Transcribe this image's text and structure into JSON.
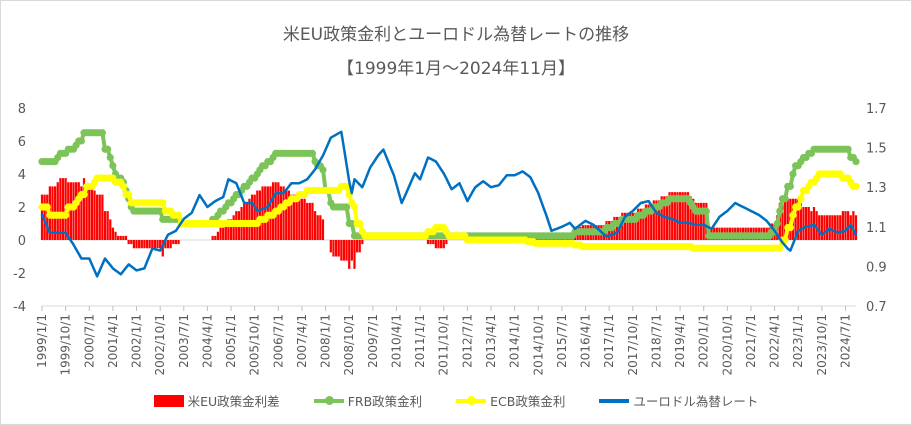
{
  "chart_data": {
    "type": "bar+line",
    "title": "米EU政策金利とユーロドル為替レートの推移",
    "subtitle": "【1999年1月～2024年11月】",
    "x_range": [
      "1999/1",
      "2024/11"
    ],
    "x_tick_labels": [
      "1999/1/1",
      "1999/10/1",
      "2000/7/1",
      "2001/4/1",
      "2002/1/1",
      "2002/10/1",
      "2003/7/1",
      "2004/4/1",
      "2005/1/1",
      "2005/10/1",
      "2006/7/1",
      "2007/4/1",
      "2008/1/1",
      "2008/10/1",
      "2009/7/1",
      "2010/4/1",
      "2011/1/1",
      "2011/10/1",
      "2012/7/1",
      "2013/4/1",
      "2014/1/1",
      "2014/10/1",
      "2015/7/1",
      "2016/4/1",
      "2017/1/1",
      "2017/10/1",
      "2018/7/1",
      "2019/4/1",
      "2020/1/1",
      "2020/10/1",
      "2021/7/1",
      "2022/4/1",
      "2023/1/1",
      "2023/10/1",
      "2024/7/1"
    ],
    "y_left": {
      "range": [
        -4,
        8
      ],
      "ticks": [
        "8",
        "6",
        "4",
        "2",
        "0",
        "-2",
        "-4"
      ]
    },
    "y_right": {
      "range": [
        0.7,
        1.7
      ],
      "ticks": [
        "1.7",
        "1.5",
        "1.3",
        "1.1",
        "0.9",
        "0.7"
      ]
    },
    "grid": false,
    "legend_position": "bottom",
    "series": [
      {
        "name": "米EU政策金利差",
        "kind": "bar",
        "axis": "left",
        "color": "#ff0000",
        "definition": "FRB政策金利 − ECB政策金利"
      },
      {
        "name": "FRB政策金利",
        "kind": "step-line-markers",
        "axis": "left",
        "color": "#7cc35a",
        "changes": [
          [
            "1999/1",
            4.75
          ],
          [
            "1999/7",
            5.0
          ],
          [
            "1999/8",
            5.25
          ],
          [
            "1999/11",
            5.5
          ],
          [
            "2000/2",
            5.75
          ],
          [
            "2000/3",
            6.0
          ],
          [
            "2000/5",
            6.5
          ],
          [
            "2001/1",
            5.5
          ],
          [
            "2001/3",
            5.0
          ],
          [
            "2001/4",
            4.5
          ],
          [
            "2001/5",
            4.0
          ],
          [
            "2001/6",
            3.75
          ],
          [
            "2001/8",
            3.5
          ],
          [
            "2001/9",
            3.0
          ],
          [
            "2001/10",
            2.5
          ],
          [
            "2001/11",
            2.0
          ],
          [
            "2001/12",
            1.75
          ],
          [
            "2002/11",
            1.25
          ],
          [
            "2003/6",
            1.0
          ],
          [
            "2004/6",
            1.25
          ],
          [
            "2004/8",
            1.5
          ],
          [
            "2004/9",
            1.75
          ],
          [
            "2004/11",
            2.0
          ],
          [
            "2004/12",
            2.25
          ],
          [
            "2005/2",
            2.5
          ],
          [
            "2005/3",
            2.75
          ],
          [
            "2005/5",
            3.0
          ],
          [
            "2005/6",
            3.25
          ],
          [
            "2005/8",
            3.5
          ],
          [
            "2005/9",
            3.75
          ],
          [
            "2005/11",
            4.0
          ],
          [
            "2005/12",
            4.25
          ],
          [
            "2006/1",
            4.5
          ],
          [
            "2006/3",
            4.75
          ],
          [
            "2006/5",
            5.0
          ],
          [
            "2006/6",
            5.25
          ],
          [
            "2007/9",
            4.75
          ],
          [
            "2007/10",
            4.5
          ],
          [
            "2007/12",
            4.25
          ],
          [
            "2008/1",
            3.0
          ],
          [
            "2008/3",
            2.25
          ],
          [
            "2008/4",
            2.0
          ],
          [
            "2008/10",
            1.0
          ],
          [
            "2008/12",
            0.25
          ],
          [
            "2015/12",
            0.5
          ],
          [
            "2016/12",
            0.75
          ],
          [
            "2017/3",
            1.0
          ],
          [
            "2017/6",
            1.25
          ],
          [
            "2017/12",
            1.5
          ],
          [
            "2018/3",
            1.75
          ],
          [
            "2018/6",
            2.0
          ],
          [
            "2018/9",
            2.25
          ],
          [
            "2018/12",
            2.5
          ],
          [
            "2019/8",
            2.25
          ],
          [
            "2019/9",
            2.0
          ],
          [
            "2019/10",
            1.75
          ],
          [
            "2020/3",
            0.25
          ],
          [
            "2022/3",
            0.5
          ],
          [
            "2022/5",
            1.0
          ],
          [
            "2022/6",
            1.75
          ],
          [
            "2022/7",
            2.5
          ],
          [
            "2022/9",
            3.25
          ],
          [
            "2022/11",
            4.0
          ],
          [
            "2022/12",
            4.5
          ],
          [
            "2023/2",
            4.75
          ],
          [
            "2023/3",
            5.0
          ],
          [
            "2023/5",
            5.25
          ],
          [
            "2023/7",
            5.5
          ],
          [
            "2024/9",
            5.0
          ],
          [
            "2024/11",
            4.75
          ]
        ]
      },
      {
        "name": "ECB政策金利",
        "kind": "step-line-markers",
        "axis": "left",
        "color": "#ffff00",
        "changes": [
          [
            "1999/1",
            2.0
          ],
          [
            "1999/4",
            1.5
          ],
          [
            "1999/11",
            2.0
          ],
          [
            "2000/2",
            2.25
          ],
          [
            "2000/3",
            2.5
          ],
          [
            "2000/4",
            2.75
          ],
          [
            "2000/6",
            3.25
          ],
          [
            "2000/9",
            3.5
          ],
          [
            "2000/10",
            3.75
          ],
          [
            "2001/5",
            3.5
          ],
          [
            "2001/8",
            3.25
          ],
          [
            "2001/9",
            2.75
          ],
          [
            "2001/11",
            2.25
          ],
          [
            "2002/12",
            1.75
          ],
          [
            "2003/3",
            1.5
          ],
          [
            "2003/6",
            1.0
          ],
          [
            "2005/12",
            1.25
          ],
          [
            "2006/3",
            1.5
          ],
          [
            "2006/6",
            1.75
          ],
          [
            "2006/8",
            2.0
          ],
          [
            "2006/10",
            2.25
          ],
          [
            "2006/12",
            2.5
          ],
          [
            "2007/3",
            2.75
          ],
          [
            "2007/6",
            3.0
          ],
          [
            "2008/7",
            3.25
          ],
          [
            "2008/10",
            2.75
          ],
          [
            "2008/11",
            2.25
          ],
          [
            "2008/12",
            2.0
          ],
          [
            "2009/1",
            1.0
          ],
          [
            "2009/3",
            0.5
          ],
          [
            "2009/4",
            0.25
          ],
          [
            "2011/4",
            0.5
          ],
          [
            "2011/7",
            0.75
          ],
          [
            "2011/11",
            0.5
          ],
          [
            "2011/12",
            0.25
          ],
          [
            "2012/7",
            0.0
          ],
          [
            "2014/6",
            -0.1
          ],
          [
            "2014/9",
            -0.2
          ],
          [
            "2015/12",
            -0.3
          ],
          [
            "2016/3",
            -0.4
          ],
          [
            "2019/9",
            -0.5
          ],
          [
            "2022/7",
            0.0
          ],
          [
            "2022/9",
            0.75
          ],
          [
            "2022/11",
            1.5
          ],
          [
            "2022/12",
            2.0
          ],
          [
            "2023/2",
            2.5
          ],
          [
            "2023/3",
            3.0
          ],
          [
            "2023/5",
            3.25
          ],
          [
            "2023/6",
            3.5
          ],
          [
            "2023/8",
            3.75
          ],
          [
            "2023/9",
            4.0
          ],
          [
            "2024/6",
            3.75
          ],
          [
            "2024/9",
            3.5
          ],
          [
            "2024/10",
            3.25
          ]
        ]
      },
      {
        "name": "ユーロドル為替レート",
        "kind": "line",
        "axis": "right",
        "color": "#0070c0",
        "points": [
          [
            "1999/1",
            1.16
          ],
          [
            "1999/4",
            1.07
          ],
          [
            "1999/7",
            1.07
          ],
          [
            "1999/10",
            1.07
          ],
          [
            "2000/1",
            1.01
          ],
          [
            "2000/4",
            0.94
          ],
          [
            "2000/7",
            0.94
          ],
          [
            "2000/10",
            0.85
          ],
          [
            "2001/1",
            0.94
          ],
          [
            "2001/4",
            0.89
          ],
          [
            "2001/7",
            0.86
          ],
          [
            "2001/10",
            0.91
          ],
          [
            "2002/1",
            0.88
          ],
          [
            "2002/4",
            0.89
          ],
          [
            "2002/7",
            0.99
          ],
          [
            "2002/10",
            0.98
          ],
          [
            "2003/1",
            1.06
          ],
          [
            "2003/4",
            1.08
          ],
          [
            "2003/7",
            1.14
          ],
          [
            "2003/10",
            1.17
          ],
          [
            "2004/1",
            1.26
          ],
          [
            "2004/4",
            1.2
          ],
          [
            "2004/7",
            1.23
          ],
          [
            "2004/10",
            1.25
          ],
          [
            "2004/12",
            1.34
          ],
          [
            "2005/3",
            1.32
          ],
          [
            "2005/6",
            1.22
          ],
          [
            "2005/9",
            1.22
          ],
          [
            "2005/11",
            1.18
          ],
          [
            "2006/3",
            1.2
          ],
          [
            "2006/6",
            1.27
          ],
          [
            "2006/9",
            1.27
          ],
          [
            "2006/12",
            1.32
          ],
          [
            "2007/3",
            1.32
          ],
          [
            "2007/6",
            1.34
          ],
          [
            "2007/9",
            1.39
          ],
          [
            "2007/12",
            1.46
          ],
          [
            "2008/3",
            1.55
          ],
          [
            "2008/7",
            1.58
          ],
          [
            "2008/10",
            1.33
          ],
          [
            "2008/11",
            1.27
          ],
          [
            "2008/12",
            1.34
          ],
          [
            "2009/3",
            1.3
          ],
          [
            "2009/6",
            1.4
          ],
          [
            "2009/9",
            1.46
          ],
          [
            "2009/11",
            1.49
          ],
          [
            "2010/3",
            1.36
          ],
          [
            "2010/6",
            1.22
          ],
          [
            "2010/9",
            1.31
          ],
          [
            "2010/11",
            1.37
          ],
          [
            "2011/1",
            1.34
          ],
          [
            "2011/4",
            1.45
          ],
          [
            "2011/7",
            1.43
          ],
          [
            "2011/10",
            1.37
          ],
          [
            "2012/1",
            1.29
          ],
          [
            "2012/4",
            1.32
          ],
          [
            "2012/7",
            1.23
          ],
          [
            "2012/10",
            1.3
          ],
          [
            "2013/1",
            1.33
          ],
          [
            "2013/4",
            1.3
          ],
          [
            "2013/7",
            1.31
          ],
          [
            "2013/10",
            1.36
          ],
          [
            "2014/1",
            1.36
          ],
          [
            "2014/4",
            1.38
          ],
          [
            "2014/7",
            1.35
          ],
          [
            "2014/10",
            1.27
          ],
          [
            "2015/1",
            1.16
          ],
          [
            "2015/3",
            1.08
          ],
          [
            "2015/7",
            1.1
          ],
          [
            "2015/10",
            1.12
          ],
          [
            "2015/12",
            1.09
          ],
          [
            "2016/4",
            1.13
          ],
          [
            "2016/7",
            1.11
          ],
          [
            "2016/12",
            1.05
          ],
          [
            "2017/4",
            1.07
          ],
          [
            "2017/7",
            1.15
          ],
          [
            "2017/10",
            1.18
          ],
          [
            "2018/1",
            1.22
          ],
          [
            "2018/4",
            1.23
          ],
          [
            "2018/7",
            1.17
          ],
          [
            "2018/10",
            1.15
          ],
          [
            "2019/1",
            1.14
          ],
          [
            "2019/4",
            1.12
          ],
          [
            "2019/7",
            1.12
          ],
          [
            "2019/10",
            1.11
          ],
          [
            "2020/1",
            1.11
          ],
          [
            "2020/4",
            1.09
          ],
          [
            "2020/7",
            1.15
          ],
          [
            "2020/10",
            1.18
          ],
          [
            "2021/1",
            1.22
          ],
          [
            "2021/4",
            1.2
          ],
          [
            "2021/7",
            1.18
          ],
          [
            "2021/10",
            1.16
          ],
          [
            "2022/1",
            1.13
          ],
          [
            "2022/4",
            1.08
          ],
          [
            "2022/7",
            1.02
          ],
          [
            "2022/9",
            0.99
          ],
          [
            "2022/10",
            0.98
          ],
          [
            "2023/1",
            1.08
          ],
          [
            "2023/4",
            1.1
          ],
          [
            "2023/7",
            1.11
          ],
          [
            "2023/10",
            1.06
          ],
          [
            "2024/1",
            1.09
          ],
          [
            "2024/4",
            1.07
          ],
          [
            "2024/7",
            1.08
          ],
          [
            "2024/9",
            1.11
          ],
          [
            "2024/11",
            1.06
          ]
        ]
      }
    ]
  }
}
